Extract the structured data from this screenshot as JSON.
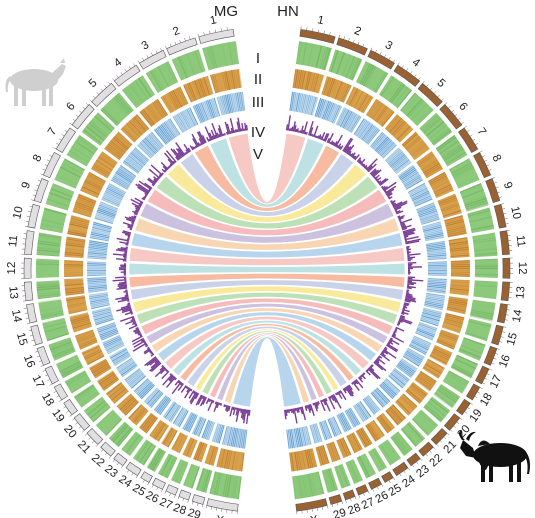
{
  "genomes": {
    "left": {
      "name": "MG",
      "color": "#e2dfe3"
    },
    "right": {
      "name": "HN",
      "color": "#9a6132"
    }
  },
  "chromosomes": [
    "1",
    "2",
    "3",
    "4",
    "5",
    "6",
    "7",
    "8",
    "9",
    "10",
    "11",
    "12",
    "13",
    "14",
    "15",
    "16",
    "17",
    "18",
    "19",
    "20",
    "21",
    "22",
    "23",
    "24",
    "25",
    "26",
    "27",
    "28",
    "29",
    "X"
  ],
  "tracks": [
    {
      "label": "I",
      "color": "#8cc97b"
    },
    {
      "label": "II",
      "color": "#d9a24c"
    },
    {
      "label": "III",
      "color": "#5b9bd0"
    },
    {
      "label": "IV",
      "color": "#7a3c97"
    },
    {
      "label": "V",
      "color": "#f2a891"
    }
  ],
  "link_colors": [
    "#f5b7b1",
    "#a9d8dc",
    "#f4a582",
    "#b9c4e3",
    "#f7e47a",
    "#a8d8a0",
    "#f3a6a6",
    "#bcaed6",
    "#f6c99a",
    "#9fc9e8"
  ],
  "icons": {
    "top_left": "cow-icon",
    "bottom_right": "zebu-bull-icon"
  }
}
